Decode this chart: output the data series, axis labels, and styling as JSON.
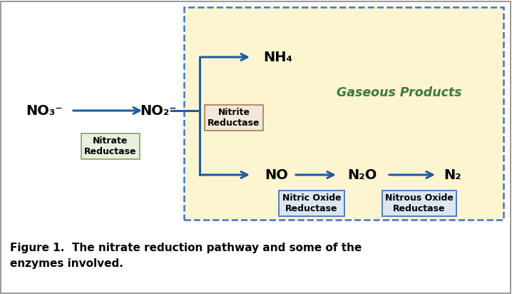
{
  "bg_color": "#ffffff",
  "diagram_bg": "#fdf5d0",
  "diagram_border_color": "#4472c4",
  "arrow_color": "#1f5c9e",
  "nitrate_box_fill": "#e8f0e0",
  "nitrate_box_edge": "#8aaa70",
  "nitrite_box_fill": "#f5e8d8",
  "nitrite_box_edge": "#b08060",
  "gaseous_box_fill": "#dce6f1",
  "gaseous_box_edge": "#4472c4",
  "gaseous_color": "#3a7a3a",
  "text_color": "#000000",
  "outer_border_color": "#888888",
  "caption": "Figure 1.  The nitrate reduction pathway and some of the\nenzymes involved.",
  "gaseous_label": "Gaseous Products",
  "labels": {
    "NO3": "NO₃⁻",
    "NO2": "NO₂⁻",
    "NH4": "NH₄",
    "NO": "NO",
    "N2O": "N₂O",
    "N2": "N₂"
  },
  "boxes": {
    "nitrate_reductase": "Nitrate\nReductase",
    "nitrite_reductase": "Nitrite\nReductase",
    "nitric_oxide_reductase": "Nitric Oxide\nReductase",
    "nitrous_oxide_reductase": "Nitrous Oxide\nReductase"
  }
}
